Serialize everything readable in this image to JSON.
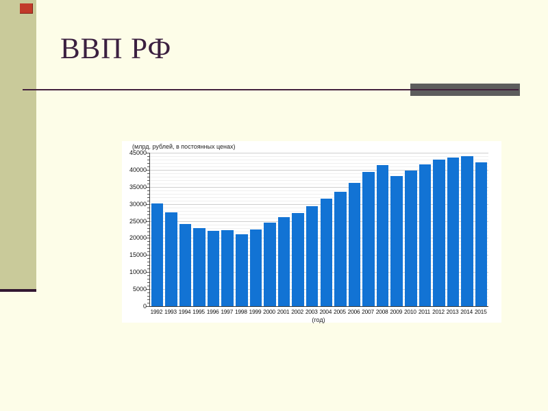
{
  "slide": {
    "title": "ВВП РФ"
  },
  "theme": {
    "background_color": "#fdfde8",
    "strip_color": "#c9ca9a",
    "strip_line_color": "#331831",
    "accent_square_color": "#c13a2a",
    "title_color": "#3b2040",
    "rule_color": "#42203c",
    "rule_bar_color": "#5d5d5d"
  },
  "chart_data": {
    "type": "bar",
    "title": "(млрд. рублей, в постоянных ценах)",
    "xlabel": "(год)",
    "ylabel": "",
    "categories": [
      "1992",
      "1993",
      "1994",
      "1995",
      "1996",
      "1997",
      "1998",
      "1999",
      "2000",
      "2001",
      "2002",
      "2003",
      "2004",
      "2005",
      "2006",
      "2007",
      "2008",
      "2009",
      "2010",
      "2011",
      "2012",
      "2013",
      "2014",
      "2015"
    ],
    "values": [
      30200,
      27500,
      24100,
      23000,
      22100,
      22400,
      21200,
      22600,
      24600,
      26100,
      27300,
      29300,
      31500,
      33600,
      36100,
      39400,
      41300,
      38100,
      39800,
      41500,
      43100,
      43600,
      44000,
      42200
    ],
    "ylim": [
      0,
      45000
    ],
    "ytick_step": 5000,
    "minor_grid_step": 1000,
    "bar_color": "#1273d4",
    "grid": true,
    "legend_position": "none"
  }
}
